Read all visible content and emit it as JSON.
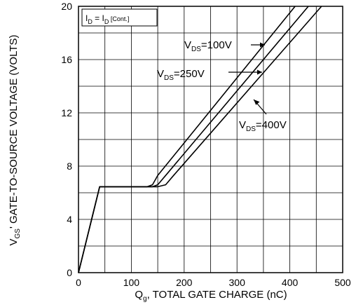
{
  "chart_data": {
    "type": "line",
    "title": "",
    "xlabel": {
      "main": "Q",
      "sub": "g",
      "rest": ", TOTAL GATE CHARGE (nC)"
    },
    "ylabel": {
      "main": "V",
      "sub": "GS",
      "rest": "' GATE-TO-SOURCE VOLTAGE (VOLTS)"
    },
    "xlim": [
      0,
      500
    ],
    "ylim": [
      0,
      20
    ],
    "xticks": [
      0,
      100,
      200,
      300,
      400,
      500
    ],
    "yticks": [
      0,
      4,
      8,
      12,
      16,
      20
    ],
    "grid": true,
    "condition": {
      "p1": "I",
      "s1": "D",
      "p2": " = I",
      "s2": "D",
      "s3": " [Cont.]"
    },
    "series": [
      {
        "name": {
          "main": "V",
          "sub": "DS",
          "rest": "=100V"
        },
        "x": [
          0,
          40,
          130,
          140,
          150,
          410
        ],
        "y": [
          0,
          6.45,
          6.45,
          6.6,
          7.3,
          20
        ]
      },
      {
        "name": {
          "main": "V",
          "sub": "DS",
          "rest": "=250V"
        },
        "x": [
          0,
          40,
          140,
          150,
          165,
          435
        ],
        "y": [
          0,
          6.45,
          6.45,
          6.6,
          7.3,
          20
        ]
      },
      {
        "name": {
          "main": "V",
          "sub": "DS",
          "rest": "=400V"
        },
        "x": [
          0,
          40,
          150,
          165,
          180,
          460
        ],
        "y": [
          0,
          6.45,
          6.45,
          6.6,
          7.3,
          20
        ]
      }
    ]
  }
}
